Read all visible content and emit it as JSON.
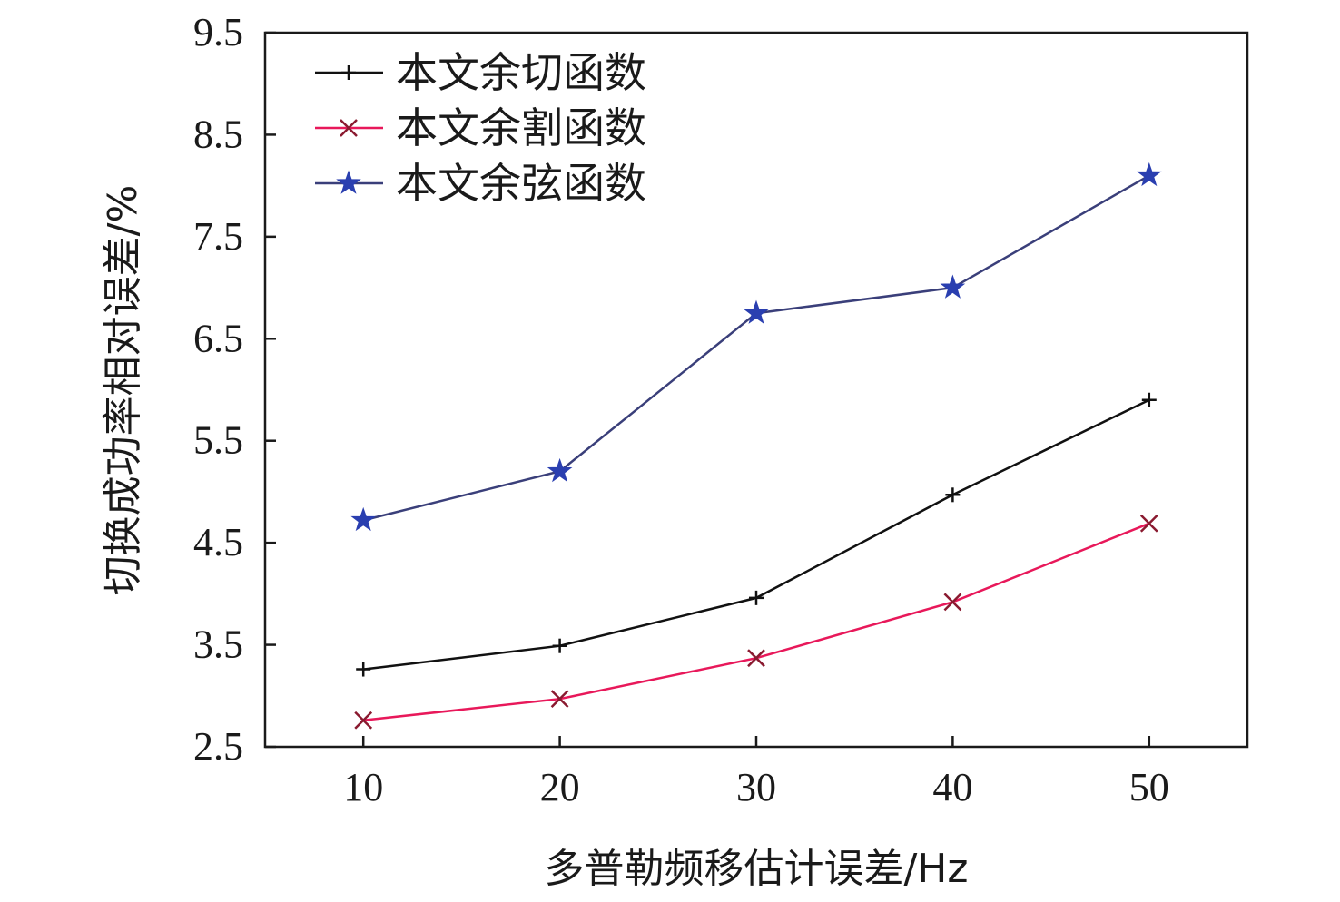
{
  "chart_data": {
    "type": "line",
    "xlabel": "多普勒频移估计误差/Hz",
    "ylabel": "切换成功率相对误差/%",
    "x": [
      10,
      20,
      30,
      40,
      50
    ],
    "xlim": [
      5,
      55
    ],
    "ylim": [
      2.5,
      9.5
    ],
    "xticks": [
      "10",
      "20",
      "30",
      "40",
      "50"
    ],
    "yticks": [
      "2.5",
      "3.5",
      "4.5",
      "5.5",
      "6.5",
      "7.5",
      "8.5",
      "9.5"
    ],
    "grid": false,
    "legend_position": "top-left",
    "series": [
      {
        "name": "本文余切函数",
        "values": [
          3.26,
          3.49,
          3.96,
          4.97,
          5.9
        ],
        "color": "#111111",
        "marker": "plus"
      },
      {
        "name": "本文余割函数",
        "values": [
          2.76,
          2.97,
          3.37,
          3.92,
          4.69
        ],
        "color": "#e8185a",
        "marker": "cross"
      },
      {
        "name": "本文余弦函数",
        "values": [
          4.72,
          5.2,
          6.75,
          7.0,
          8.1
        ],
        "color": "#3a3f7a",
        "marker": "star"
      }
    ]
  }
}
